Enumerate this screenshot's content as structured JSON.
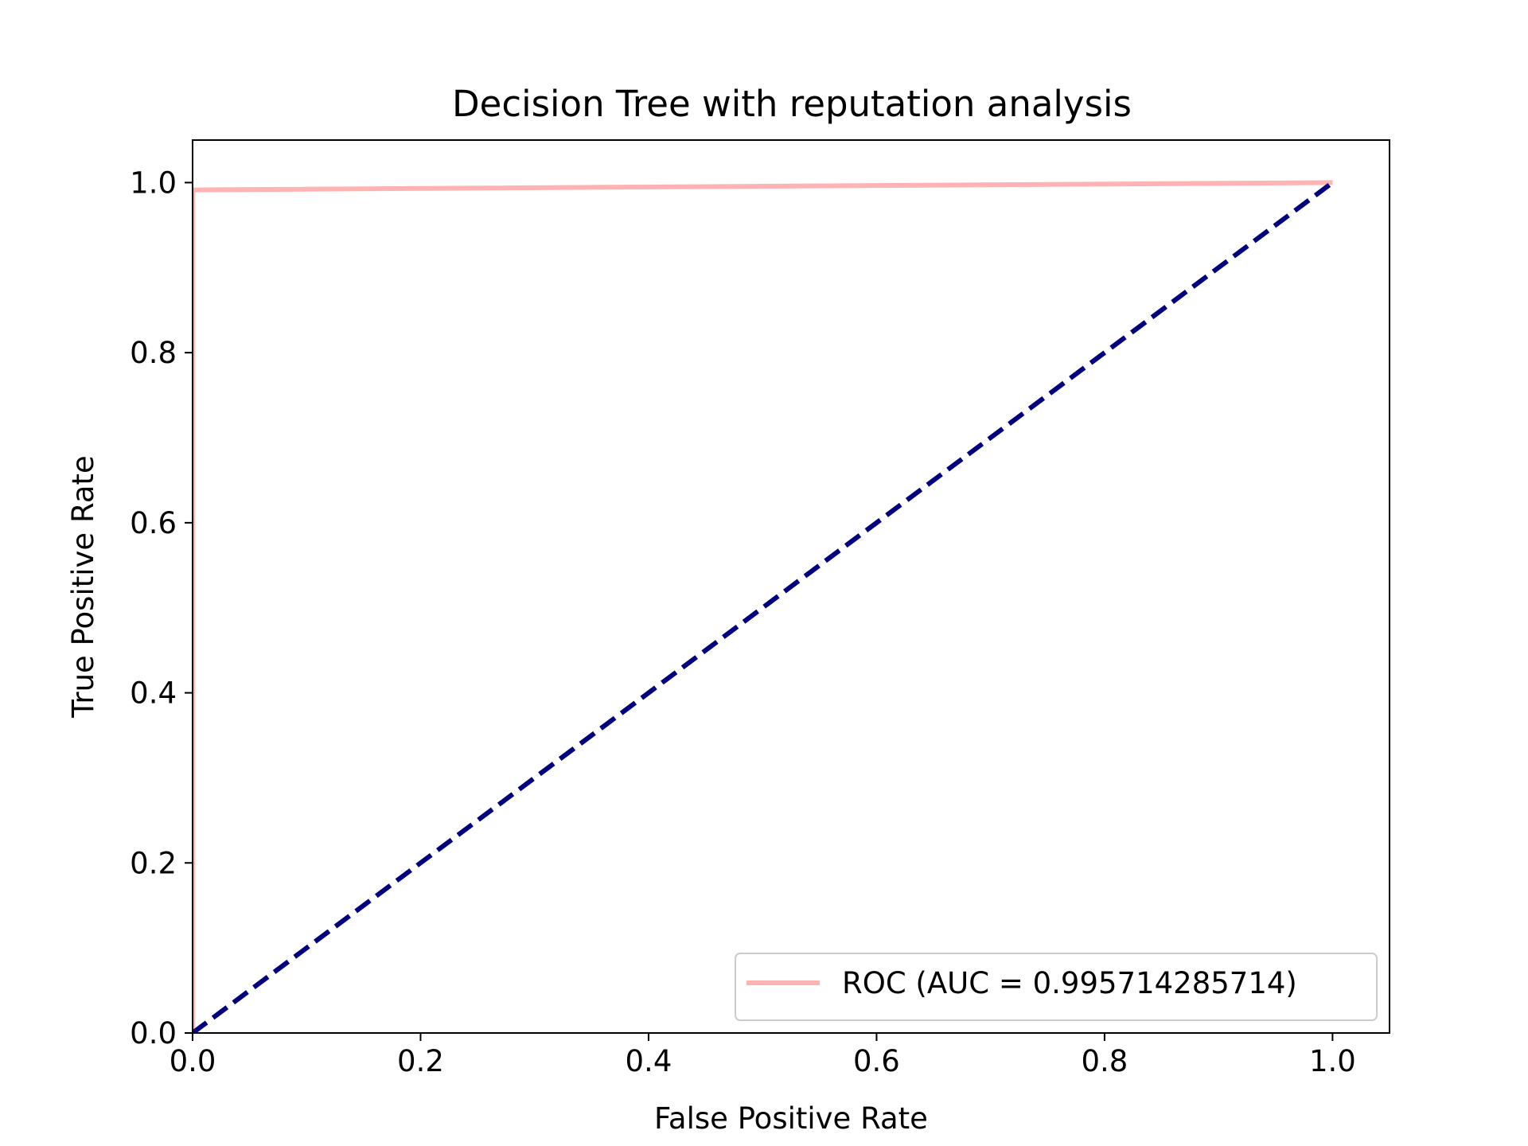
{
  "chart_data": {
    "type": "line",
    "title": "Decision Tree with reputation analysis",
    "xlabel": "False Positive Rate",
    "ylabel": "True Positive Rate",
    "xlim": [
      0.0,
      1.05
    ],
    "ylim": [
      0.0,
      1.05
    ],
    "xticks": [
      "0.0",
      "0.2",
      "0.4",
      "0.6",
      "0.8",
      "1.0"
    ],
    "yticks": [
      "0.0",
      "0.2",
      "0.4",
      "0.6",
      "0.8",
      "1.0"
    ],
    "grid": false,
    "legend_position": "lower-right",
    "series": [
      {
        "name": "ROC (AUC = 0.995714285714)",
        "color": "#ffb3b3",
        "style": "solid",
        "x": [
          0.0,
          0.0,
          1.0
        ],
        "y": [
          0.0,
          0.9914,
          1.0
        ]
      },
      {
        "color": "#000080",
        "style": "dashed",
        "x": [
          0.0,
          1.0
        ],
        "y": [
          0.0,
          1.0
        ]
      }
    ]
  }
}
